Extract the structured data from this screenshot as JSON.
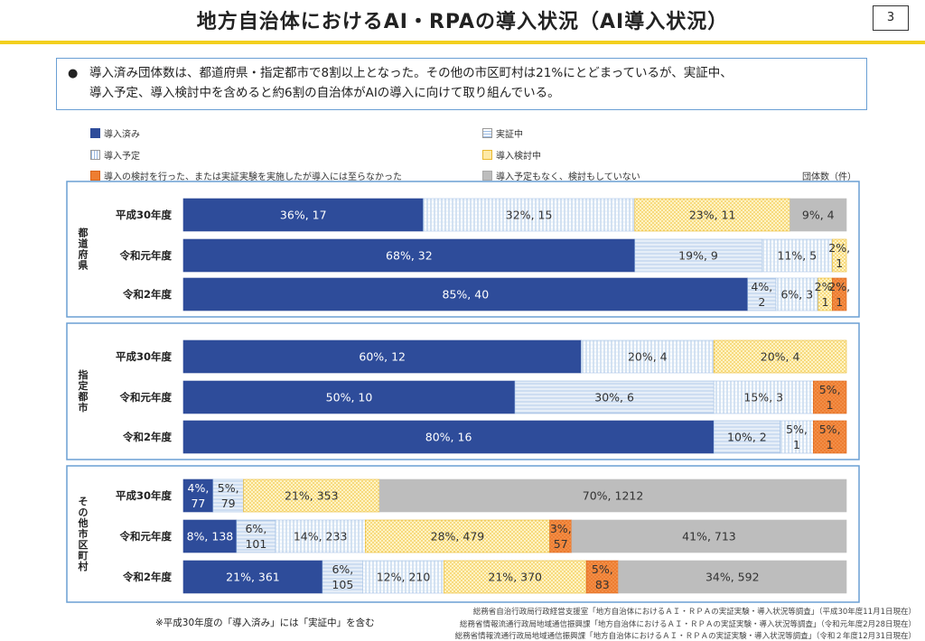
{
  "page": {
    "title": "地方自治体におけるAI・RPAの導入状況（AI導入状況）",
    "page_number": "3",
    "summary_bullet": "●",
    "summary_line1": "導入済み団体数は、都道府県・指定都市で8割以上となった。その他の市区町村は21%にとどまっているが、実証中、",
    "summary_line2": "導入予定、導入検討中を含めると約6割の自治体がAIの導入に向けて取り組んでいる。",
    "unit_label": "団体数（件）",
    "footnote": "※平成30年度の「導入済み」には「実証中」を含む",
    "sources": [
      "総務省自治行政局行政経営支援室「地方自治体におけるＡＩ・ＲＰＡの実証実験・導入状況等調査」（平成30年度11月1日現在）",
      "総務省情報流通行政局地域通信振興課「地方自治体におけるＡＩ・ＲＰＡの実証実験・導入状況等調査」（令和元年度2月28日現在）",
      "総務省情報流通行政局地域通信振興課「地方自治体におけるＡＩ・ＲＰＡの実証実験・導入状況等調査」（令和２年度12月31日現在）"
    ]
  },
  "colors": {
    "導入済み": "#2e4c9a",
    "実証中": "#dbe6f5",
    "導入予定": "#e3f0fb",
    "導入検討中": "#fde9a6",
    "導入の検討を行った": "#ee7d31",
    "予定なし": "#bdbdbd",
    "frame": "#6a9fd4",
    "rule": "#f2cf1e"
  },
  "chart_data": {
    "type": "bar",
    "orientation": "horizontal-stacked-100",
    "legend": [
      {
        "key": "導入済み",
        "label": "導入済み"
      },
      {
        "key": "実証中",
        "label": "実証中"
      },
      {
        "key": "導入予定",
        "label": "導入予定"
      },
      {
        "key": "導入検討中",
        "label": "導入検討中"
      },
      {
        "key": "導入の検討を行った",
        "label": "導入の検討を行った、または実証実験を実施したが導入には至らなかった"
      },
      {
        "key": "予定なし",
        "label": "導入予定もなく、検討もしていない"
      }
    ],
    "groups": [
      {
        "name": "都道府県",
        "rows": [
          {
            "year": "平成30年度",
            "segments": [
              {
                "key": "導入済み",
                "label": "36%, 17",
                "count": 17
              },
              {
                "key": "導入予定",
                "label": "32%, 15",
                "count": 15
              },
              {
                "key": "導入検討中",
                "label": "23%, 11",
                "count": 11
              },
              {
                "key": "予定なし",
                "label": "9%, 4",
                "count": 4
              }
            ]
          },
          {
            "year": "令和元年度",
            "segments": [
              {
                "key": "導入済み",
                "label": "68%, 32",
                "count": 32
              },
              {
                "key": "実証中",
                "label": "19%, 9",
                "count": 9
              },
              {
                "key": "導入予定",
                "label": "11%, 5",
                "count": 5
              },
              {
                "key": "導入検討中",
                "label": "2%, 1",
                "count": 1
              }
            ]
          },
          {
            "year": "令和2年度",
            "segments": [
              {
                "key": "導入済み",
                "label": "85%, 40",
                "count": 40
              },
              {
                "key": "実証中",
                "label": "4%, 2",
                "count": 2
              },
              {
                "key": "導入予定",
                "label": "6%, 3",
                "count": 3
              },
              {
                "key": "導入検討中",
                "label": "2%, 1",
                "count": 1
              },
              {
                "key": "導入の検討を行った",
                "label": "2%, 1",
                "count": 1
              }
            ]
          }
        ]
      },
      {
        "name": "指定都市",
        "rows": [
          {
            "year": "平成30年度",
            "segments": [
              {
                "key": "導入済み",
                "label": "60%, 12",
                "count": 12
              },
              {
                "key": "導入予定",
                "label": "20%, 4",
                "count": 4
              },
              {
                "key": "導入検討中",
                "label": "20%, 4",
                "count": 4
              }
            ]
          },
          {
            "year": "令和元年度",
            "segments": [
              {
                "key": "導入済み",
                "label": "50%, 10",
                "count": 10
              },
              {
                "key": "実証中",
                "label": "30%, 6",
                "count": 6
              },
              {
                "key": "導入予定",
                "label": "15%, 3",
                "count": 3
              },
              {
                "key": "導入の検討を行った",
                "label": "5%, 1",
                "count": 1
              }
            ]
          },
          {
            "year": "令和2年度",
            "segments": [
              {
                "key": "導入済み",
                "label": "80%, 16",
                "count": 16
              },
              {
                "key": "実証中",
                "label": "10%, 2",
                "count": 2
              },
              {
                "key": "導入予定",
                "label": "5%, 1",
                "count": 1
              },
              {
                "key": "導入の検討を行った",
                "label": "5%, 1",
                "count": 1
              }
            ]
          }
        ]
      },
      {
        "name": "その他市区町村",
        "rows": [
          {
            "year": "平成30年度",
            "segments": [
              {
                "key": "導入済み",
                "label": "4%, 77",
                "count": 77
              },
              {
                "key": "実証中",
                "label": "5%, 79",
                "count": 79
              },
              {
                "key": "導入検討中",
                "label": "21%, 353",
                "count": 353
              },
              {
                "key": "予定なし",
                "label": "70%, 1212",
                "count": 1212
              }
            ]
          },
          {
            "year": "令和元年度",
            "segments": [
              {
                "key": "導入済み",
                "label": "8%, 138",
                "count": 138
              },
              {
                "key": "実証中",
                "label": "6%, 101",
                "count": 101
              },
              {
                "key": "導入予定",
                "label": "14%, 233",
                "count": 233
              },
              {
                "key": "導入検討中",
                "label": "28%, 479",
                "count": 479
              },
              {
                "key": "導入の検討を行った",
                "label": "3%, 57",
                "count": 57
              },
              {
                "key": "予定なし",
                "label": "41%, 713",
                "count": 713
              }
            ]
          },
          {
            "year": "令和2年度",
            "segments": [
              {
                "key": "導入済み",
                "label": "21%, 361",
                "count": 361
              },
              {
                "key": "実証中",
                "label": "6%, 105",
                "count": 105
              },
              {
                "key": "導入予定",
                "label": "12%, 210",
                "count": 210
              },
              {
                "key": "導入検討中",
                "label": "21%, 370",
                "count": 370
              },
              {
                "key": "導入の検討を行った",
                "label": "5%, 83",
                "count": 83
              },
              {
                "key": "予定なし",
                "label": "34%, 592",
                "count": 592
              }
            ]
          }
        ]
      }
    ]
  }
}
